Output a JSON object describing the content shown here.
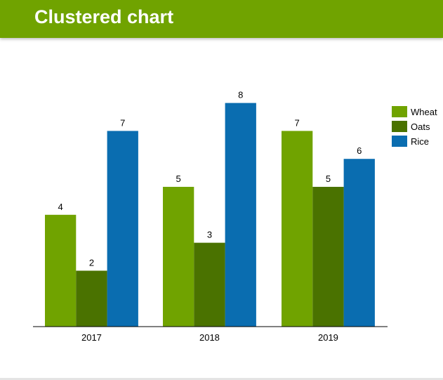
{
  "header": {
    "title": "Clustered chart"
  },
  "chart_data": {
    "type": "bar",
    "title": "",
    "xlabel": "",
    "ylabel": "",
    "categories": [
      "2017",
      "2018",
      "2019"
    ],
    "series": [
      {
        "name": "Wheat",
        "values": [
          4,
          5,
          7
        ],
        "color": "#70a300"
      },
      {
        "name": "Oats",
        "values": [
          2,
          3,
          5
        ],
        "color": "#4a7200"
      },
      {
        "name": "Rice",
        "values": [
          7,
          8,
          6
        ],
        "color": "#0a6db0"
      }
    ],
    "ylim": [
      0,
      8
    ],
    "grid": false,
    "data_labels": true,
    "legend": "right"
  }
}
